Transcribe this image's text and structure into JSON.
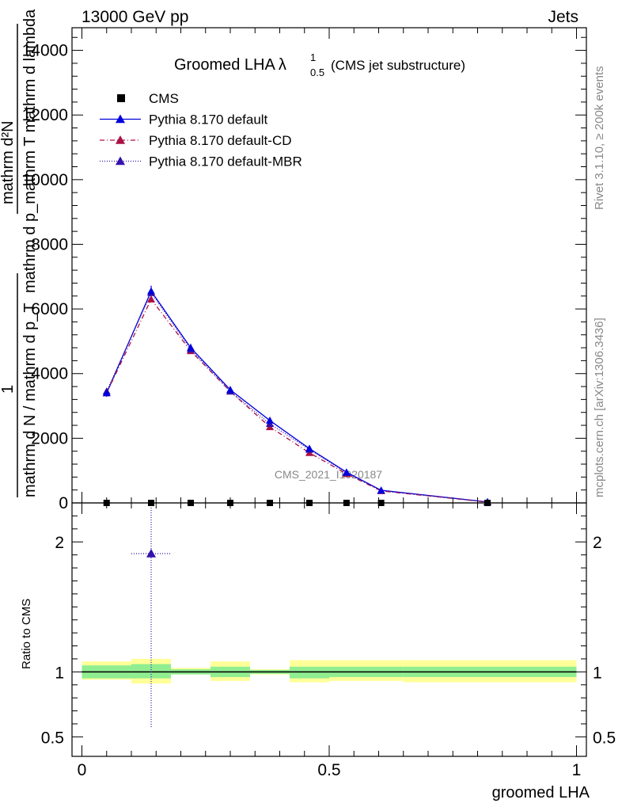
{
  "header": {
    "left": "13000 GeV pp",
    "right": "Jets"
  },
  "side_labels": {
    "rivet": "Rivet 3.1.10, ≥ 200k events",
    "mcplots": "mcplots.cern.ch [arXiv:1306.3436]"
  },
  "main_plot": {
    "title_main": "Groomed LHA",
    "title_lambda": "λ",
    "title_sup": "1",
    "title_sub": "0.5",
    "title_note": "(CMS jet substructure)",
    "ylabel_top": "mathrm d²N",
    "ylabel_bottom": "mathrm d p_mathrm T mathrm d lambda",
    "ylabel_lhs": "1",
    "ylabel_rhs": "mathrm d N / mathrm d p_T",
    "ylabel_fraction_numer": "mathrm d²N",
    "ylabel_fraction_denom": "mathrm d p_mathrm T mathrm d lambda",
    "ylabel_fraction2_numer": "1",
    "ylabel_fraction2_denom": "mathrm d N / mathrm d p_T",
    "watermark": "CMS_2021_I1920187"
  },
  "ratio_plot": {
    "ylabel": "Ratio to CMS",
    "xlabel": "groomed LHA"
  },
  "legend": [
    {
      "label": "CMS",
      "marker": "square",
      "color": "#000000",
      "line": "none"
    },
    {
      "label": "Pythia 8.170 default",
      "marker": "triangle",
      "color": "#0000dd",
      "line": "solid"
    },
    {
      "label": "Pythia 8.170 default-CD",
      "marker": "triangle",
      "color": "#aa1144",
      "line": "dashdot"
    },
    {
      "label": "Pythia 8.170 default-MBR",
      "marker": "triangle",
      "color": "#3311aa",
      "line": "dotted"
    }
  ],
  "chart_data": {
    "type": "line",
    "x_axis": {
      "range": [
        -0.02,
        1.02
      ],
      "ticks": [
        0,
        0.5,
        1
      ],
      "tick_labels": [
        "0",
        "0.5",
        "1"
      ]
    },
    "main_y_axis": {
      "range": [
        0,
        14700
      ],
      "ticks": [
        0,
        2000,
        4000,
        6000,
        8000,
        10000,
        12000,
        14000
      ],
      "tick_labels": [
        "0",
        "2000",
        "4000",
        "6000",
        "8000",
        "10000",
        "12000",
        "14000"
      ]
    },
    "ratio_y_axis": {
      "range": [
        0.35,
        2.3
      ],
      "ticks": [
        0.5,
        1,
        2
      ],
      "tick_labels": [
        "0.5",
        "1",
        "2"
      ]
    },
    "bins": [
      {
        "lo": 0.0,
        "hi": 0.1,
        "x": 0.05
      },
      {
        "lo": 0.1,
        "hi": 0.18,
        "x": 0.14
      },
      {
        "lo": 0.18,
        "hi": 0.26,
        "x": 0.22
      },
      {
        "lo": 0.26,
        "hi": 0.34,
        "x": 0.3
      },
      {
        "lo": 0.34,
        "hi": 0.42,
        "x": 0.38
      },
      {
        "lo": 0.42,
        "hi": 0.5,
        "x": 0.46
      },
      {
        "lo": 0.5,
        "hi": 0.58,
        "x": 0.535
      },
      {
        "lo": 0.58,
        "hi": 0.65,
        "x": 0.605
      },
      {
        "lo": 0.65,
        "hi": 1.0,
        "x": 0.82
      }
    ],
    "series": [
      {
        "name": "CMS",
        "values": [
          0,
          0,
          0,
          0,
          0,
          0,
          0,
          0,
          0
        ],
        "color": "#000000"
      },
      {
        "name": "Pythia 8.170 default",
        "values": [
          3400,
          6550,
          4800,
          3500,
          2550,
          1680,
          950,
          390,
          30
        ],
        "errors": [
          120,
          170,
          120,
          90,
          80,
          60,
          40,
          20,
          5
        ],
        "color": "#0000dd"
      },
      {
        "name": "Pythia 8.170 default-CD",
        "values": [
          3400,
          6300,
          4700,
          3450,
          2350,
          1550,
          900,
          370,
          25
        ],
        "color": "#aa1144"
      },
      {
        "name": "Pythia 8.170 default-MBR",
        "values": [
          3450,
          6500,
          4750,
          3450,
          2450,
          1650,
          930,
          380,
          28
        ],
        "color": "#3311aa"
      }
    ],
    "ratio": {
      "band_inner": [
        [
          0.95,
          1.05
        ],
        [
          0.95,
          1.06
        ],
        [
          0.98,
          1.02
        ],
        [
          0.96,
          1.04
        ],
        [
          0.985,
          1.015
        ],
        [
          0.95,
          1.04
        ],
        [
          0.96,
          1.04
        ],
        [
          0.96,
          1.04
        ],
        [
          0.96,
          1.04
        ]
      ],
      "band_outer": [
        [
          0.94,
          1.08
        ],
        [
          0.91,
          1.1
        ],
        [
          0.98,
          1.03
        ],
        [
          0.93,
          1.08
        ],
        [
          0.98,
          1.02
        ],
        [
          0.92,
          1.09
        ],
        [
          0.93,
          1.09
        ],
        [
          0.93,
          1.09
        ],
        [
          0.92,
          1.09
        ]
      ],
      "mbr_point": {
        "x": 0.14,
        "y": 1.91,
        "err_lo": 0.57,
        "err_hi": 2.3
      }
    }
  }
}
